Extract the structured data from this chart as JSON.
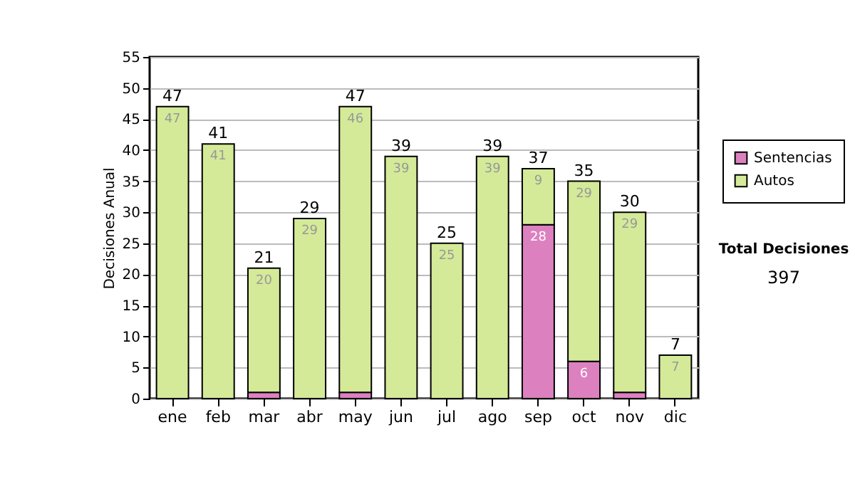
{
  "chart_data": {
    "type": "bar",
    "stacked": true,
    "ylabel": "Decisiones Anual",
    "categories": [
      "ene",
      "feb",
      "mar",
      "abr",
      "may",
      "jun",
      "jul",
      "ago",
      "sep",
      "oct",
      "nov",
      "dic"
    ],
    "series": [
      {
        "name": "Sentencias",
        "color": "#dd80c0",
        "values": [
          0,
          0,
          1,
          0,
          1,
          0,
          0,
          0,
          28,
          6,
          1,
          0
        ],
        "value_labels": [
          null,
          null,
          null,
          null,
          null,
          null,
          null,
          null,
          "28",
          "6",
          null,
          null
        ]
      },
      {
        "name": "Autos",
        "color": "#d4ea98",
        "values": [
          47,
          41,
          20,
          29,
          46,
          39,
          25,
          39,
          9,
          29,
          29,
          7
        ],
        "value_labels": [
          "47",
          "41",
          "20",
          "29",
          "46",
          "39",
          "25",
          "39",
          "9",
          "29",
          "29",
          "7"
        ]
      }
    ],
    "totals": [
      "47",
      "41",
      "21",
      "29",
      "47",
      "39",
      "25",
      "39",
      "37",
      "35",
      "30",
      "7"
    ],
    "ylim": [
      0,
      55
    ],
    "yticks": [
      0,
      5,
      10,
      15,
      20,
      25,
      30,
      35,
      40,
      45,
      50,
      55
    ],
    "grid": "y",
    "legend": "top right",
    "annotations": [
      "Total Decisiones",
      "397"
    ]
  }
}
